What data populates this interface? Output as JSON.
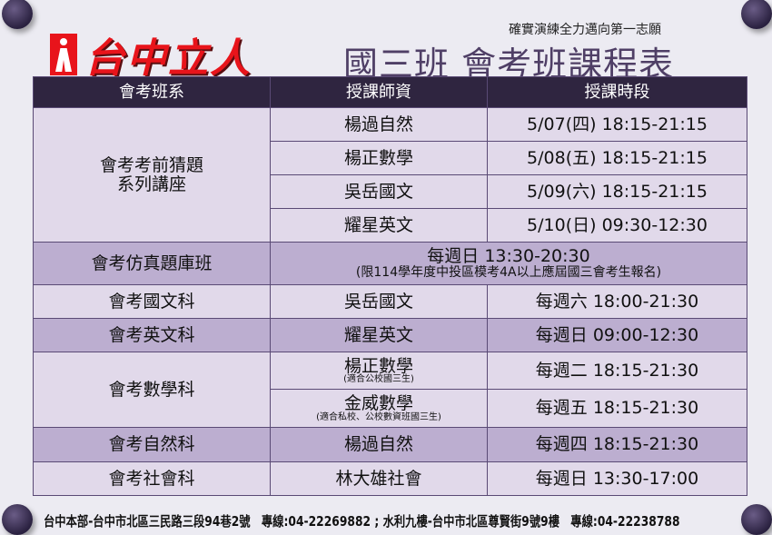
{
  "brand": {
    "name": "台中立人"
  },
  "slogan": "確實演練全力邁向第一志願",
  "title": "國三班 會考班課程表",
  "headers": [
    "會考班系",
    "授課師資",
    "授課時段"
  ],
  "group1": {
    "name": "會考考前猜題系列講座",
    "name_line1": "會考考前猜題",
    "name_line2": "系列講座",
    "rows": [
      {
        "teacher": "楊過自然",
        "time": "5/07(四) 18:15-21:15"
      },
      {
        "teacher": "楊正數學",
        "time": "5/08(五) 18:15-21:15"
      },
      {
        "teacher": "吳岳國文",
        "time": "5/09(六) 18:15-21:15"
      },
      {
        "teacher": "耀星英文",
        "time": "5/10(日) 09:30-12:30"
      }
    ]
  },
  "mock": {
    "name": "會考仿真題庫班",
    "time": "每週日 13:30-20:30",
    "note": "(限114學年度中投區模考4A以上應屆國三會考生報名)"
  },
  "chinese": {
    "name": "會考國文科",
    "teacher": "吳岳國文",
    "time": "每週六 18:00-21:30"
  },
  "english": {
    "name": "會考英文科",
    "teacher": "耀星英文",
    "time": "每週日 09:00-12:30"
  },
  "math": {
    "name": "會考數學科",
    "rows": [
      {
        "teacher": "楊正數學",
        "note": "(適合公校國三生)",
        "time": "每週二 18:15-21:30"
      },
      {
        "teacher": "金威數學",
        "note": "(適合私校、公校數資班國三生)",
        "time": "每週五 18:15-21:30"
      }
    ]
  },
  "science": {
    "name": "會考自然科",
    "teacher": "楊過自然",
    "time": "每週四 18:15-21:30"
  },
  "social": {
    "name": "會考社會科",
    "teacher": "林大雄社會",
    "time": "每週日 13:30-17:00"
  },
  "footer": "台中本部-台中市北區三民路三段94巷2號　專線:04-22269882 ; 水利九樓-台中市北區尊賢街9號9樓　專線:04-22238788",
  "colors": {
    "header": "#2f2540",
    "row_light": "#e1d9ea",
    "row_dark": "#bcaed0",
    "title": "#4f3f66",
    "brand": "#e8141b"
  }
}
